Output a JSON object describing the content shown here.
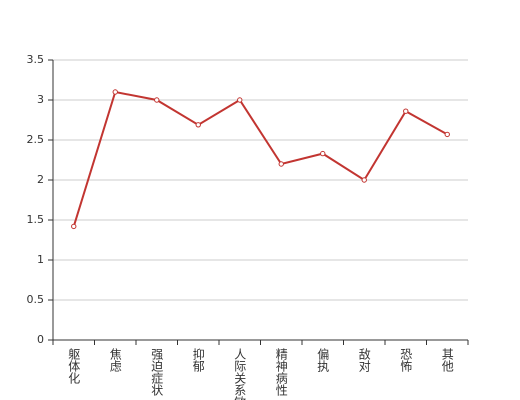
{
  "chart_data": {
    "type": "line",
    "categories": [
      "躯体化",
      "焦虑",
      "强迫症状",
      "抑郁",
      "人际关系敏感",
      "精神病性",
      "偏执",
      "敌对",
      "恐怖",
      "其他"
    ],
    "series": [
      {
        "color": "#c23531",
        "values": [
          1.42,
          3.1,
          3.0,
          2.69,
          3.0,
          2.2,
          2.33,
          2.0,
          2.86,
          2.57
        ]
      }
    ],
    "ylim": [
      0,
      3.5
    ],
    "yticks": [
      0,
      0.5,
      1,
      1.5,
      2,
      2.5,
      3,
      3.5
    ],
    "grid": true
  }
}
